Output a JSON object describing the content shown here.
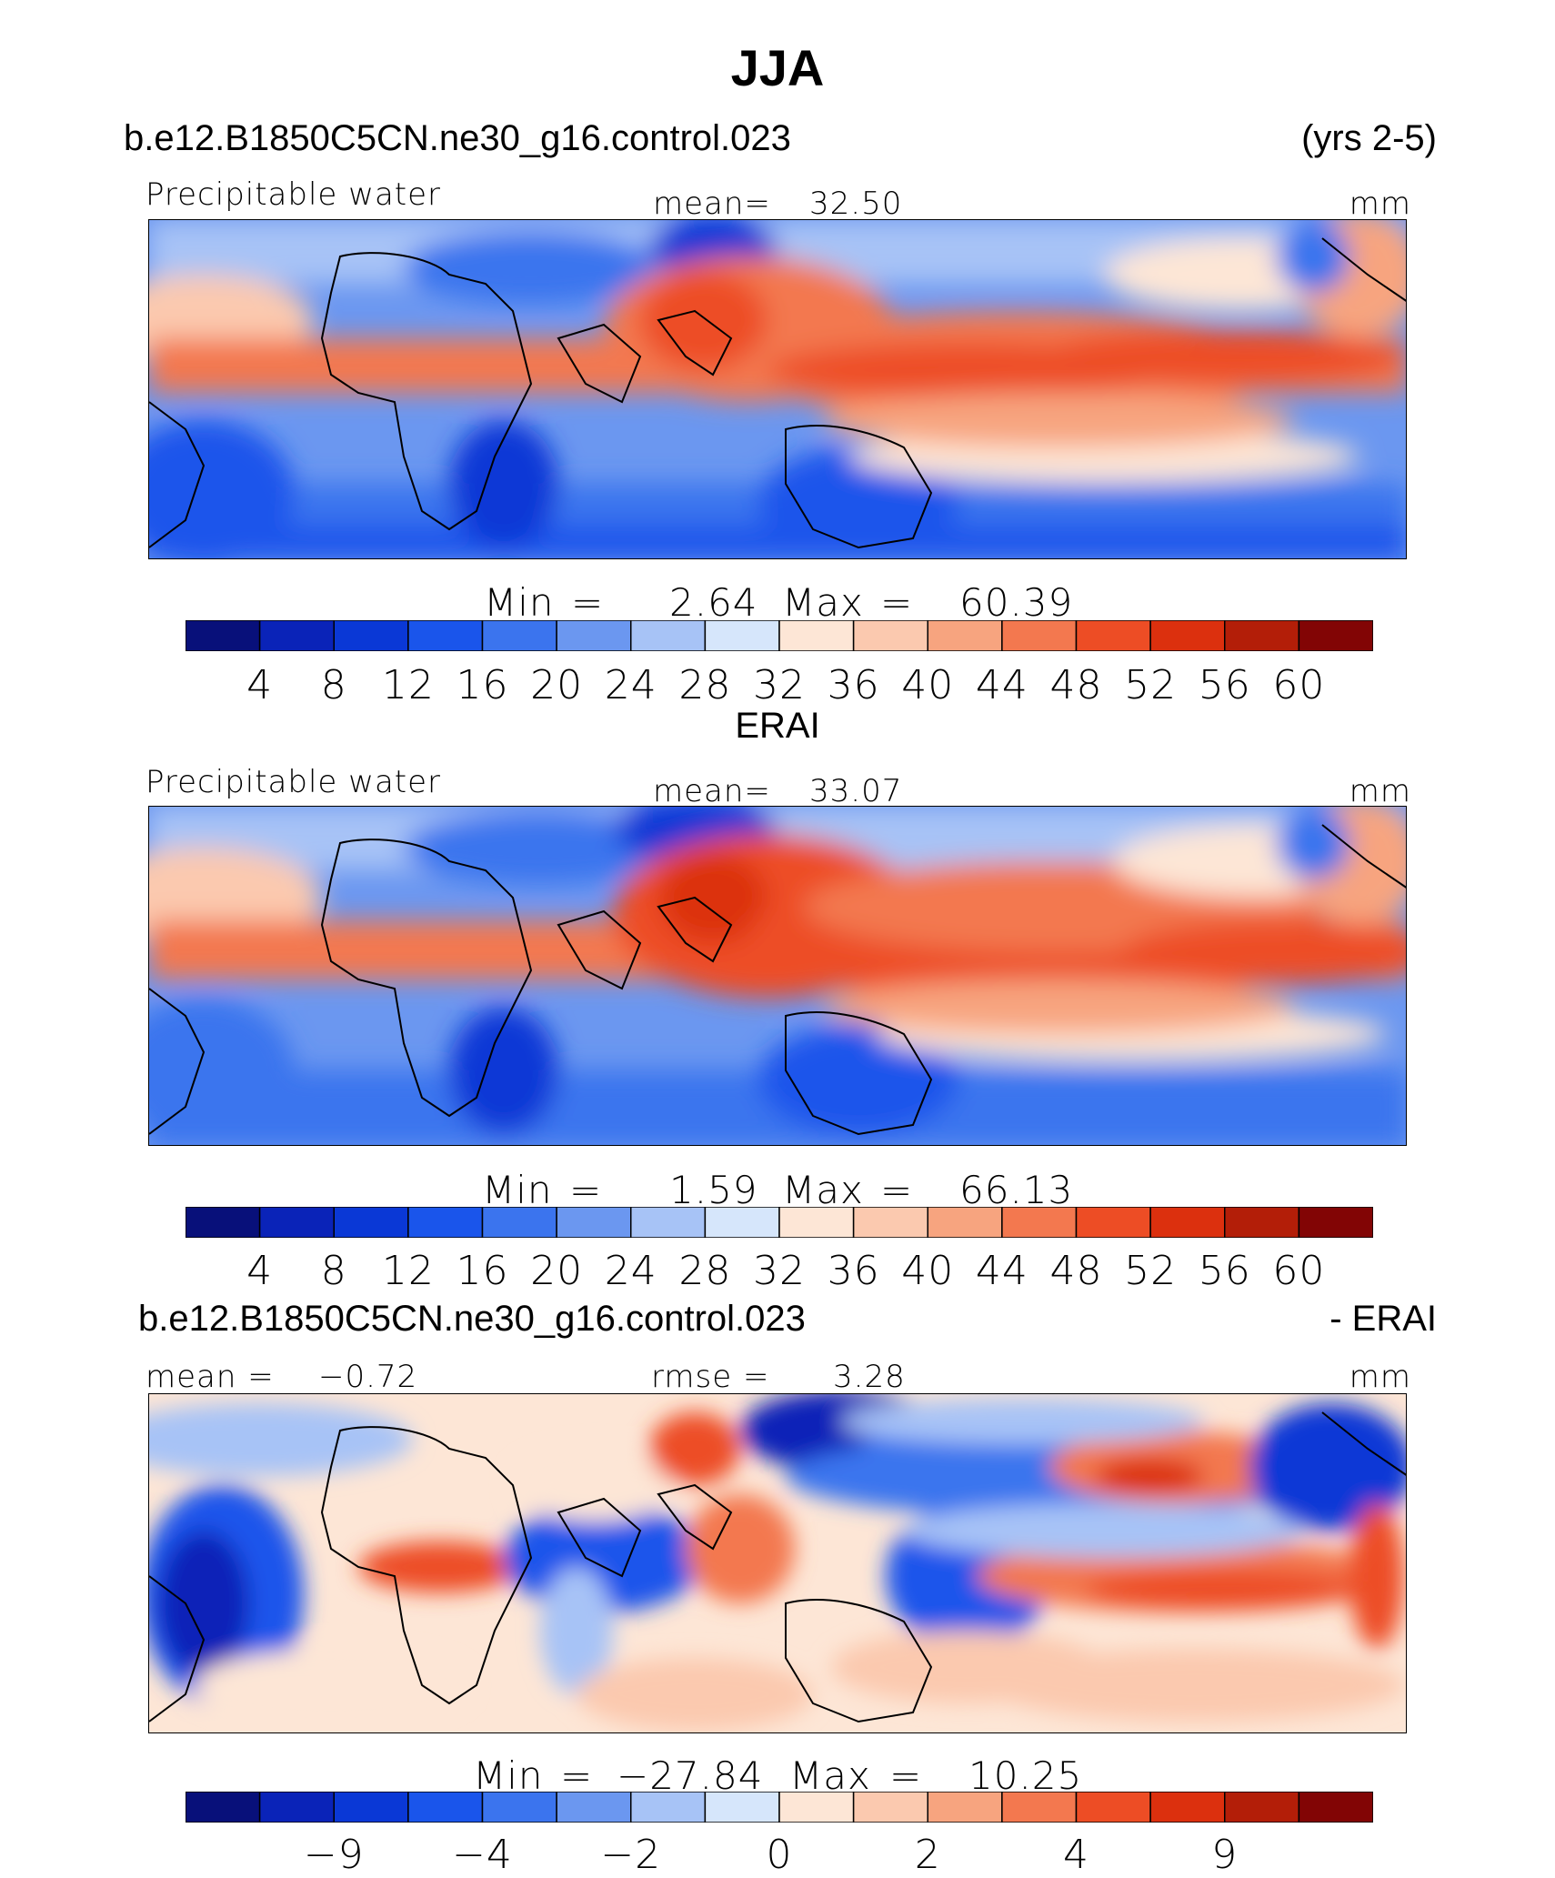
{
  "page_title": "JJA",
  "colors": {
    "diverging_17": [
      "#08107a",
      "#0a23b8",
      "#0a38d6",
      "#1a55eb",
      "#3b74ee",
      "#6b97f0",
      "#a7c3f6",
      "#d6e6fb",
      "#fde6d6",
      "#fbc9af",
      "#f7a47f",
      "#f3784f",
      "#ed4d25",
      "#dc300e",
      "#b31e08",
      "#820505"
    ]
  },
  "chart_data": [
    {
      "type": "heatmap",
      "id": "model",
      "case_title": "b.e12.B1850C5CN.ne30_g16.control.023",
      "period": "(yrs 2-5)",
      "left_label": "Precipitable water",
      "center_label": "mean=",
      "center_value": "32.50",
      "units": "mm",
      "min_label": "Min",
      "eq": "=",
      "min_value": "2.64",
      "max_label": "Max",
      "max_value": "60.39",
      "levels": [
        "4",
        "8",
        "12",
        "16",
        "20",
        "24",
        "28",
        "32",
        "36",
        "40",
        "44",
        "48",
        "52",
        "56",
        "60"
      ]
    },
    {
      "type": "heatmap",
      "id": "obs",
      "case_title": "ERAI",
      "left_label": "Precipitable water",
      "center_label": "mean=",
      "center_value": "33.07",
      "units": "mm",
      "min_label": "Min",
      "eq": "=",
      "min_value": "1.59",
      "max_label": "Max",
      "max_value": "66.13",
      "levels": [
        "4",
        "8",
        "12",
        "16",
        "20",
        "24",
        "28",
        "32",
        "36",
        "40",
        "44",
        "48",
        "52",
        "56",
        "60"
      ]
    },
    {
      "type": "heatmap",
      "id": "diff",
      "case_title": "b.e12.B1850C5CN.ne30_g16.control.023",
      "right_title": "- ERAI",
      "left_label": "mean =",
      "left_value": "−0.72",
      "center_label": "rmse =",
      "center_value": "3.28",
      "units": "mm",
      "min_label": "Min",
      "eq": "=",
      "min_value": "−27.84",
      "max_label": "Max",
      "max_value": "10.25",
      "levels": [
        "−9",
        "−4",
        "−2",
        "0",
        "2",
        "4",
        "9"
      ]
    }
  ]
}
